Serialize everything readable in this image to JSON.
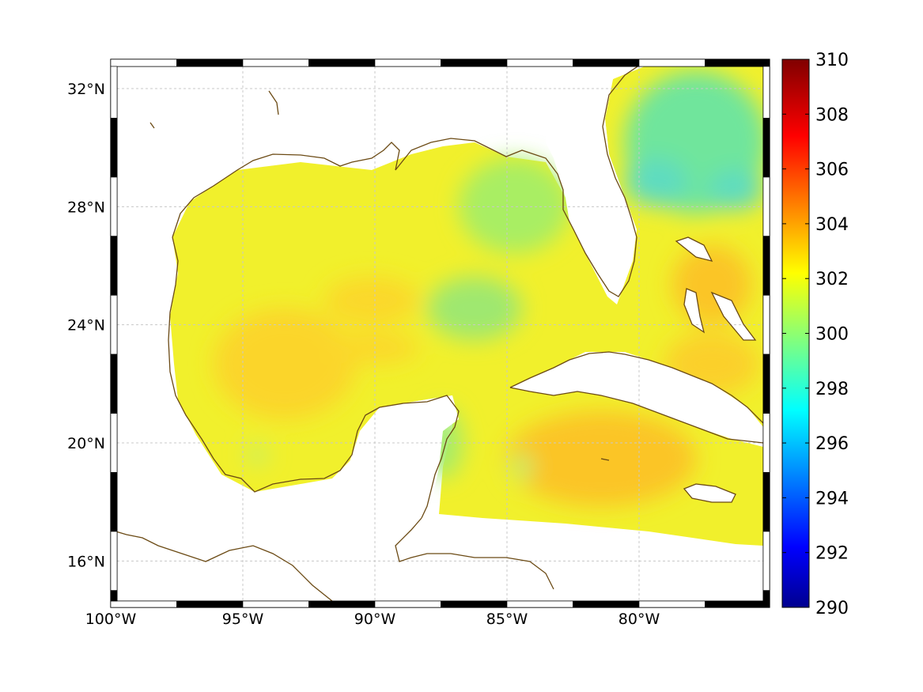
{
  "map": {
    "x_ticks": [
      {
        "value": -100,
        "label": "100°W"
      },
      {
        "value": -95,
        "label": "95°W"
      },
      {
        "value": -90,
        "label": "90°W"
      },
      {
        "value": -85,
        "label": "85°W"
      },
      {
        "value": -80,
        "label": "80°W"
      }
    ],
    "y_ticks": [
      {
        "value": 32,
        "label": "32°N"
      },
      {
        "value": 28,
        "label": "28°N"
      },
      {
        "value": 24,
        "label": "24°N"
      },
      {
        "value": 20,
        "label": "20°N"
      },
      {
        "value": 16,
        "label": "16°N"
      }
    ],
    "extent": {
      "lon_min": -100,
      "lon_max": -75,
      "lat_min": 14.5,
      "lat_max": 33
    }
  },
  "colorbar": {
    "min": 290,
    "max": 310,
    "ticks": [
      "290",
      "292",
      "294",
      "296",
      "298",
      "300",
      "302",
      "304",
      "306",
      "308",
      "310"
    ],
    "colormap": "jet"
  },
  "colors": {
    "coastline": "#6b4a14",
    "grid": "#bbbbbb",
    "base_sst": "#f0f03a"
  }
}
